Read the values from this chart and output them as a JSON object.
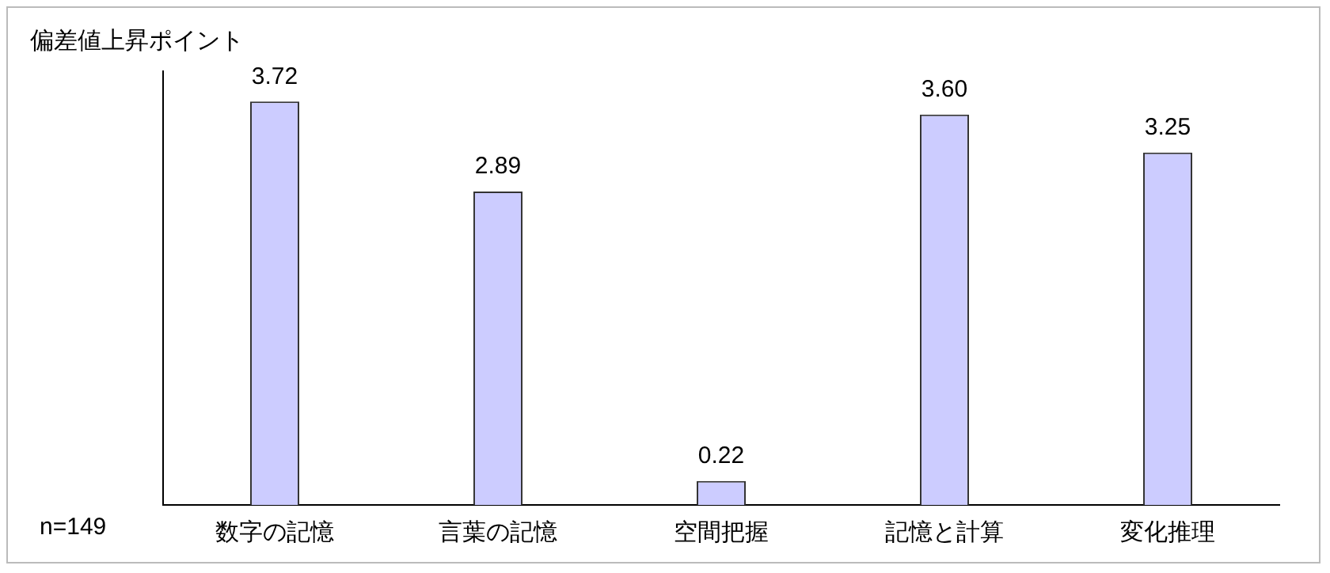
{
  "chart_data": {
    "type": "bar",
    "ylabel": "偏差値上昇ポイント",
    "categories": [
      "数字の記憶",
      "言葉の記憶",
      "空間把握",
      "記憶と計算",
      "変化推理"
    ],
    "values": [
      3.72,
      2.89,
      0.22,
      3.6,
      3.25
    ],
    "value_labels": [
      "3.72",
      "2.89",
      "0.22",
      "3.60",
      "3.25"
    ],
    "color": "#ccccff",
    "annotations": [
      "n=149"
    ],
    "grid": false,
    "legend": false,
    "tick_labels": "x"
  }
}
